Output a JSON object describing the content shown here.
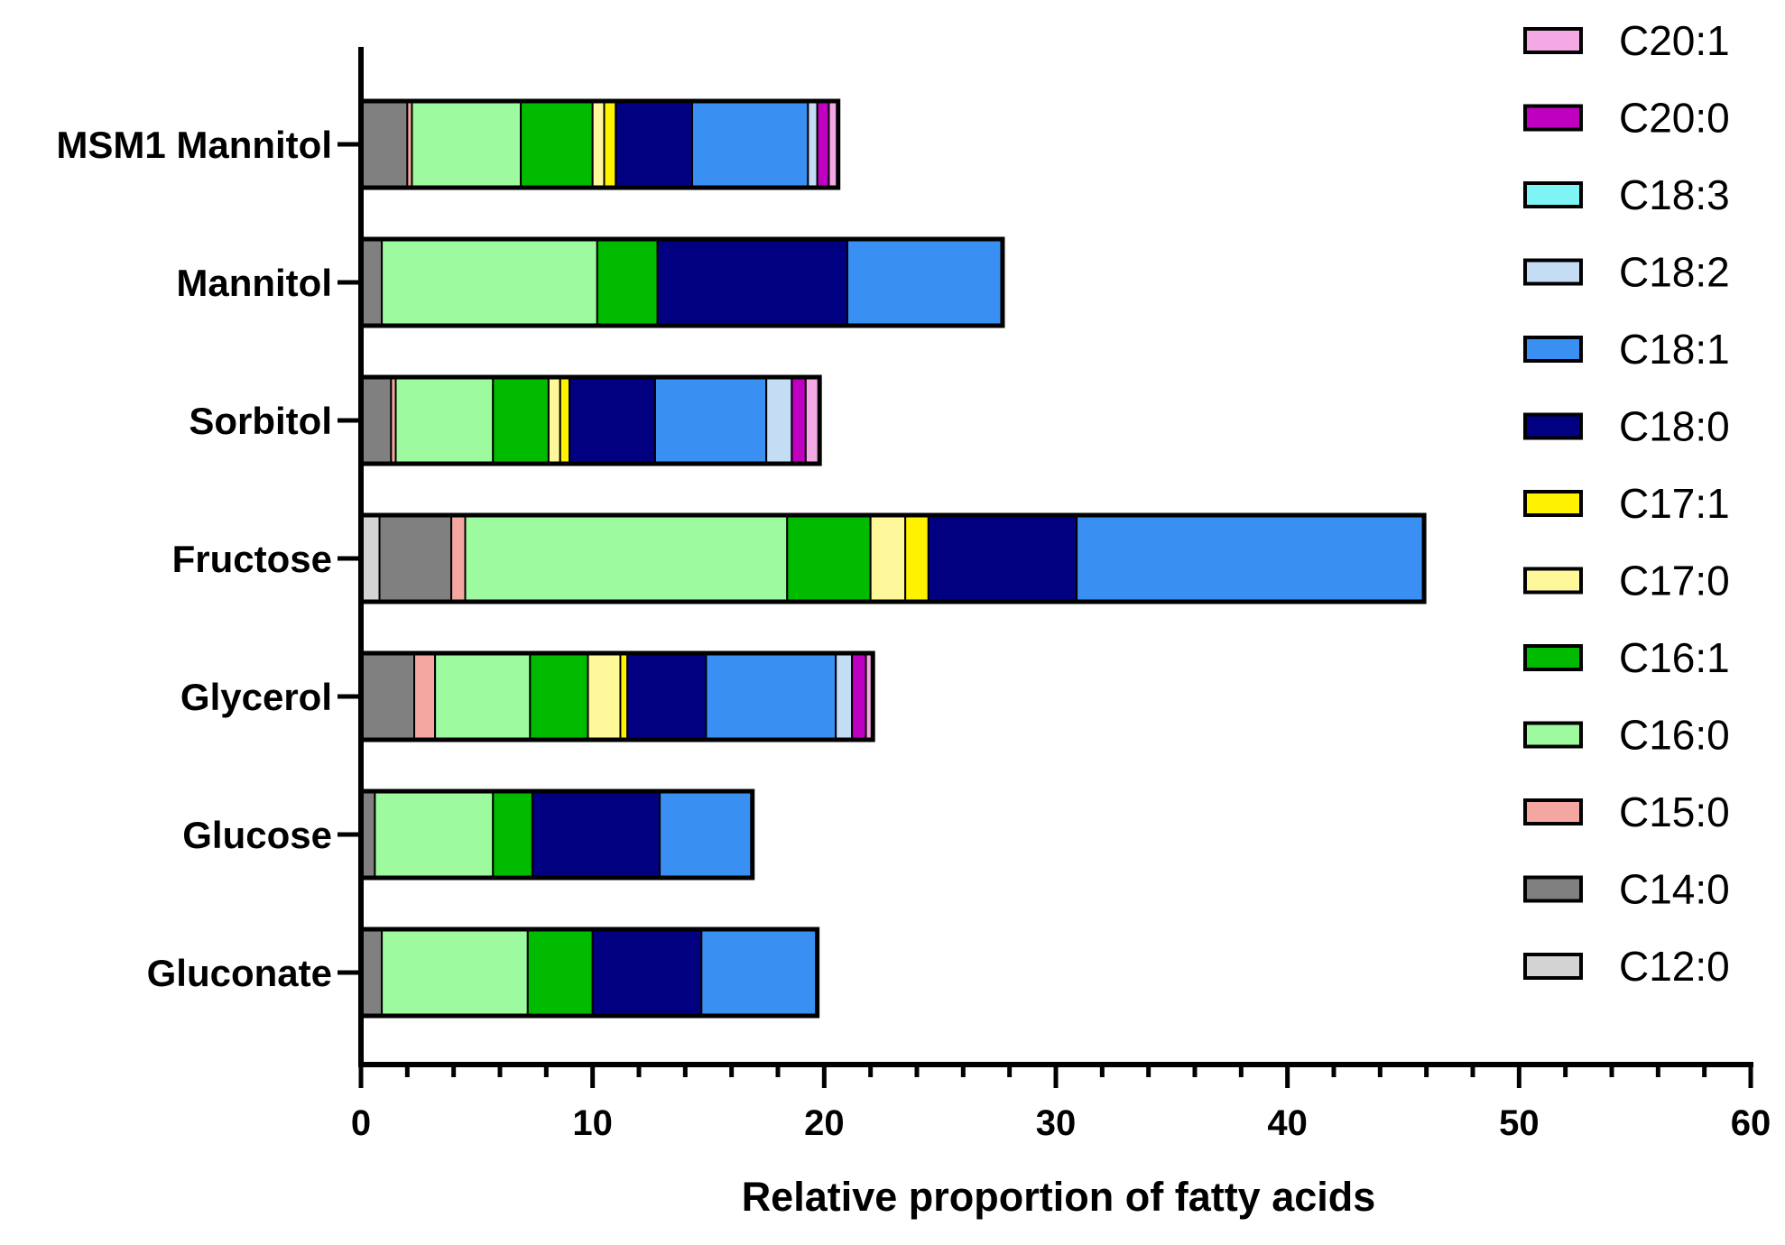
{
  "chart_data": {
    "type": "bar",
    "orientation": "horizontal",
    "stacked": true,
    "xlabel": "Relative proportion of fatty acids",
    "ylabel": "",
    "xlim": [
      0,
      60
    ],
    "x_ticks": [
      0,
      10,
      20,
      30,
      40,
      50,
      60
    ],
    "legend_position": "right",
    "categories": [
      "MSM1 Mannitol",
      "Mannitol",
      "Sorbitol",
      "Fructose",
      "Glycerol",
      "Glucose",
      "Gluconate"
    ],
    "series": [
      {
        "name": "C12:0",
        "color": "#d3d3d3",
        "values": [
          0,
          0,
          0,
          0.8,
          0,
          0,
          0
        ]
      },
      {
        "name": "C14:0",
        "color": "#808080",
        "values": [
          2.0,
          0.9,
          1.3,
          3.1,
          2.3,
          0.6,
          0.9
        ]
      },
      {
        "name": "C15:0",
        "color": "#f4a6a0",
        "values": [
          0.2,
          0,
          0.2,
          0.6,
          0.9,
          0,
          0
        ]
      },
      {
        "name": "C16:0",
        "color": "#9efa9e",
        "values": [
          4.7,
          9.3,
          4.2,
          13.9,
          4.1,
          5.1,
          6.3
        ]
      },
      {
        "name": "C16:1",
        "color": "#00bb00",
        "values": [
          3.1,
          2.6,
          2.4,
          3.6,
          2.5,
          1.7,
          2.8
        ]
      },
      {
        "name": "C17:0",
        "color": "#fff89a",
        "values": [
          0.5,
          0,
          0.5,
          1.5,
          1.4,
          0,
          0
        ]
      },
      {
        "name": "C17:1",
        "color": "#fff200",
        "values": [
          0.5,
          0,
          0.4,
          1.0,
          0.3,
          0,
          0
        ]
      },
      {
        "name": "C18:0",
        "color": "#000080",
        "values": [
          3.3,
          8.2,
          3.7,
          6.4,
          3.4,
          5.5,
          4.7
        ]
      },
      {
        "name": "C18:1",
        "color": "#3a8ff2",
        "values": [
          5.0,
          6.7,
          4.8,
          15.0,
          5.6,
          4.0,
          5.0
        ]
      },
      {
        "name": "C18:2",
        "color": "#c5dcf5",
        "values": [
          0.4,
          0,
          1.1,
          0,
          0.7,
          0,
          0
        ]
      },
      {
        "name": "C18:3",
        "color": "#7ff4f4",
        "values": [
          0,
          0,
          0,
          0,
          0,
          0,
          0
        ]
      },
      {
        "name": "C20:0",
        "color": "#c000c0",
        "values": [
          0.5,
          0,
          0.6,
          0,
          0.6,
          0,
          0
        ]
      },
      {
        "name": "C20:1",
        "color": "#f4a8e4",
        "values": [
          0.4,
          0,
          0.6,
          0,
          0.3,
          0,
          0
        ]
      }
    ]
  }
}
